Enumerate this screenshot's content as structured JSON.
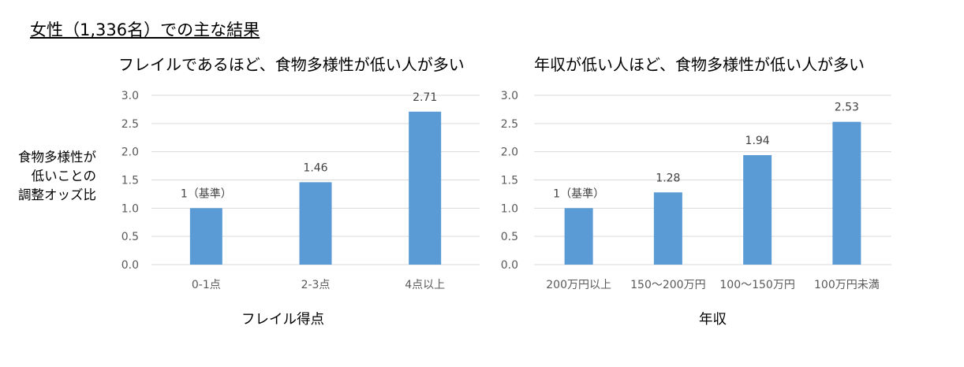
{
  "heading": "女性（1,336名）での主な結果",
  "y_axis_label_lines": [
    "食物多様性が",
    "低いことの",
    "調整オッズ比"
  ],
  "chart_data": [
    {
      "type": "bar",
      "title": "フレイルであるほど、食物多様性が低い人が多い",
      "xlabel": "フレイル得点",
      "ylabel": "食物多様性が低いことの調整オッズ比",
      "categories": [
        "0-1点",
        "2-3点",
        "4点以上"
      ],
      "values": [
        1,
        1.46,
        2.71
      ],
      "data_labels": [
        "1（基準）",
        "1.46",
        "2.71"
      ],
      "ylim": [
        0,
        3.0
      ],
      "yticks": [
        "0.0",
        "0.5",
        "1.0",
        "1.5",
        "2.0",
        "2.5",
        "3.0"
      ],
      "grid": true,
      "bar_color": "#5b9bd5"
    },
    {
      "type": "bar",
      "title": "年収が低い人ほど、食物多様性が低い人が多い",
      "xlabel": "年収",
      "ylabel": "食物多様性が低いことの調整オッズ比",
      "categories": [
        "200万円以上",
        "150～200万円",
        "100～150万円",
        "100万円未満"
      ],
      "values": [
        1,
        1.28,
        1.94,
        2.53
      ],
      "data_labels": [
        "1（基準）",
        "1.28",
        "1.94",
        "2.53"
      ],
      "ylim": [
        0,
        3.0
      ],
      "yticks": [
        "0.0",
        "0.5",
        "1.0",
        "1.5",
        "2.0",
        "2.5",
        "3.0"
      ],
      "grid": true,
      "bar_color": "#5b9bd5"
    }
  ]
}
